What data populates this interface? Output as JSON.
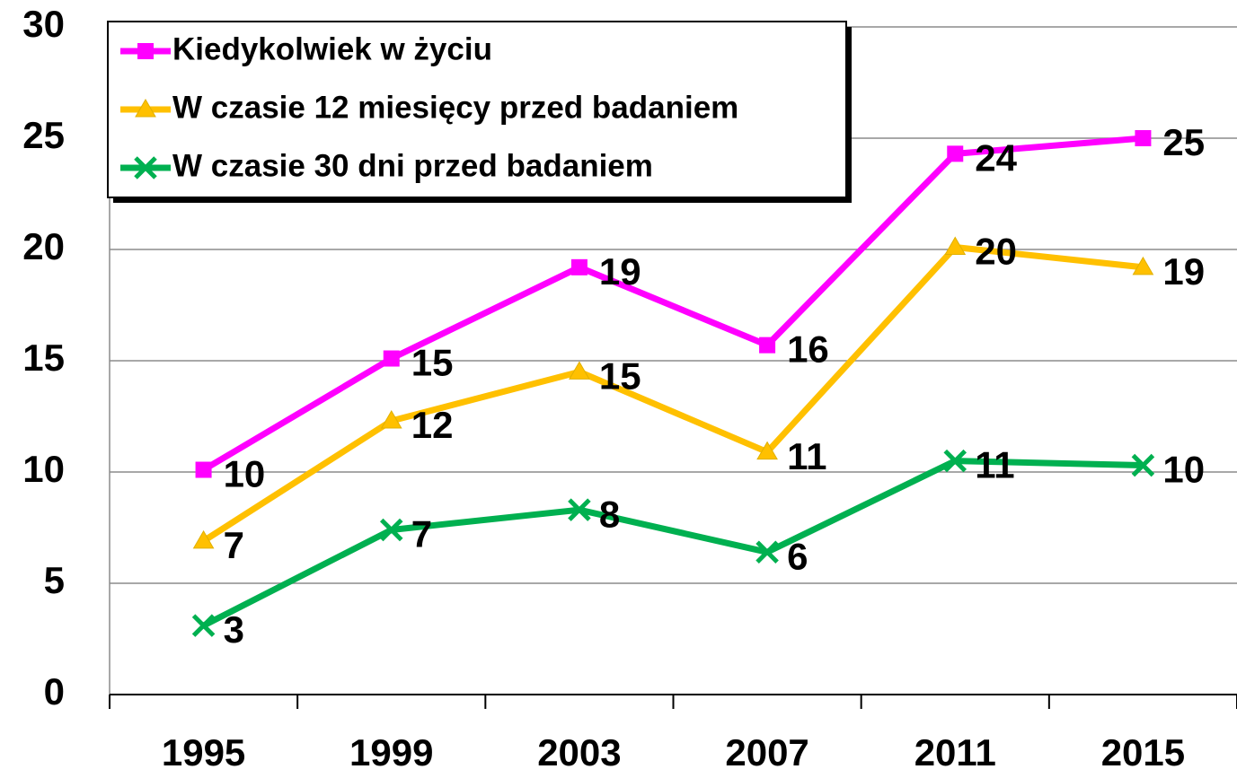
{
  "chart_data": {
    "type": "line",
    "categories": [
      "1995",
      "1999",
      "2003",
      "2007",
      "2011",
      "2015"
    ],
    "series": [
      {
        "name": "Kiedykolwiek w życiu",
        "color": "#ff00ff",
        "marker": "square",
        "values": [
          10.1,
          15.1,
          19.2,
          15.7,
          24.3,
          25.0
        ],
        "value_labels": [
          "10",
          "15",
          "19",
          "16",
          "24",
          "25"
        ]
      },
      {
        "name": "W czasie 12 miesięcy przed badaniem",
        "color": "#ffc000",
        "marker": "triangle",
        "values": [
          6.9,
          12.3,
          14.5,
          10.9,
          20.1,
          19.2
        ],
        "value_labels": [
          "7",
          "12",
          "15",
          "11",
          "20",
          "19"
        ]
      },
      {
        "name": "W czasie 30 dni przed badaniem",
        "color": "#00b050",
        "marker": "x",
        "values": [
          3.1,
          7.4,
          8.3,
          6.4,
          10.5,
          10.3
        ],
        "value_labels": [
          "3",
          "7",
          "8",
          "6",
          "11",
          "10"
        ]
      }
    ],
    "ylim": [
      0,
      30
    ],
    "yticks": [
      0,
      5,
      10,
      15,
      20,
      25,
      30
    ],
    "grid": true,
    "legend": "upper left"
  }
}
